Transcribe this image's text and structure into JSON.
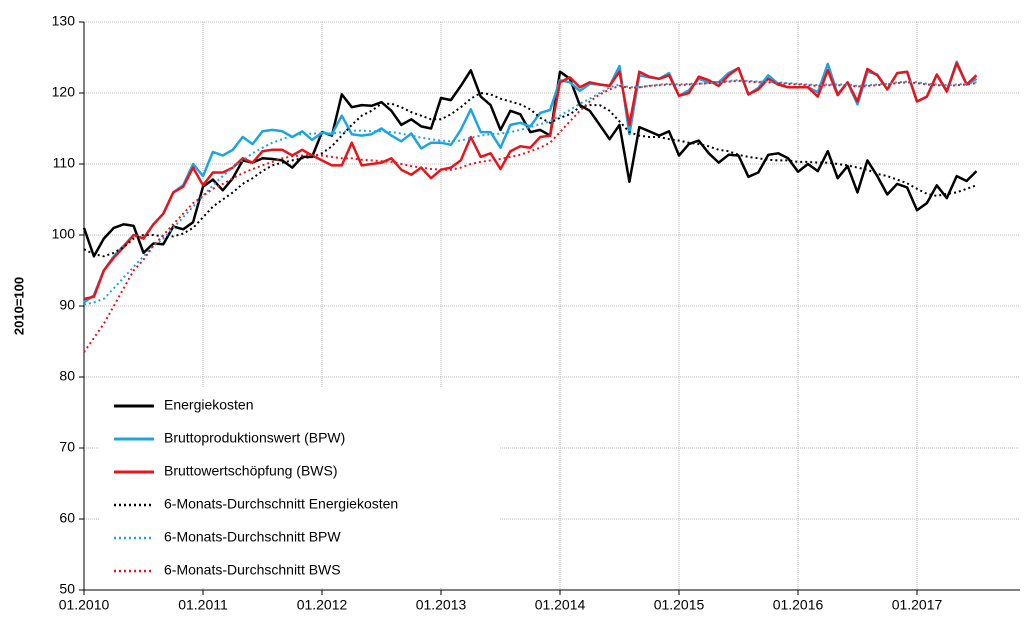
{
  "chart_data": {
    "type": "line",
    "y_label": "2010=100",
    "categories": [
      "01.2010",
      null,
      null,
      null,
      null,
      null,
      null,
      null,
      null,
      null,
      null,
      null,
      "01.2011",
      null,
      null,
      null,
      null,
      null,
      null,
      null,
      null,
      null,
      null,
      null,
      "01.2012",
      null,
      null,
      null,
      null,
      null,
      null,
      null,
      null,
      null,
      null,
      null,
      "01.2013",
      null,
      null,
      null,
      null,
      null,
      null,
      null,
      null,
      null,
      null,
      null,
      "01.2014",
      null,
      null,
      null,
      null,
      null,
      null,
      null,
      null,
      null,
      null,
      null,
      "01.2015",
      null,
      null,
      null,
      null,
      null,
      null,
      null,
      null,
      null,
      null,
      null,
      "01.2016",
      null,
      null,
      null,
      null,
      null,
      null,
      null,
      null,
      null,
      null,
      null,
      "01.2017",
      null,
      null,
      null,
      null,
      null,
      null
    ],
    "ylim": [
      50,
      130
    ],
    "yticks": [
      50,
      60,
      70,
      80,
      90,
      100,
      110,
      120,
      130
    ],
    "grid": true,
    "legend": "lower left",
    "series": [
      {
        "name": "Energiekosten",
        "color": "#000000",
        "line_style": "solid",
        "values": [
          101,
          97,
          99.5,
          101,
          101.5,
          101.3,
          97.5,
          98.8,
          98.7,
          101.2,
          100.8,
          101.8,
          106.8,
          107.8,
          106.3,
          108,
          110.5,
          110.2,
          110.8,
          110.7,
          110.5,
          109.5,
          111,
          111,
          114.5,
          114,
          119.8,
          118,
          118.3,
          118.2,
          118.7,
          117.5,
          115.5,
          116.3,
          115.3,
          115,
          119.3,
          119,
          121,
          123.2,
          119.5,
          118.3,
          114.8,
          117.5,
          117,
          114.5,
          114.8,
          114,
          123,
          122,
          118.3,
          117.5,
          115.5,
          113.5,
          115.5,
          107.5,
          115.2,
          114.6,
          114,
          114.6,
          111.2,
          112.8,
          113.3,
          111.5,
          110.2,
          111.3,
          111.2,
          108.2,
          108.8,
          111.3,
          111.5,
          110.8,
          108.9,
          110,
          109,
          111.8,
          108,
          109.7,
          106,
          110.5,
          108.3,
          105.7,
          107.2,
          106.7,
          103.5,
          104.5,
          107,
          105.2,
          108.3,
          107.6,
          109
        ]
      },
      {
        "name": "Bruttoproduktionswert (BPW)",
        "color": "#1ea5e0",
        "line_style": "solid",
        "values": [
          90.5,
          91.5,
          95,
          97,
          98.5,
          100,
          99.5,
          101.5,
          103,
          106,
          107,
          110,
          108.3,
          111.7,
          111.2,
          112,
          113.8,
          112.8,
          114.6,
          114.8,
          114.6,
          113.8,
          114.6,
          113.4,
          114.4,
          114.2,
          116.8,
          114.2,
          114,
          114.2,
          115,
          114,
          113.2,
          114.3,
          112.2,
          113,
          113,
          112.7,
          114.8,
          117.7,
          114.5,
          114.5,
          112.3,
          115.5,
          115.8,
          115.3,
          117.2,
          117.6,
          121.8,
          121.5,
          120.3,
          121.3,
          121.2,
          121,
          123.8,
          114.2,
          122.5,
          122.2,
          122,
          122.8,
          119.6,
          120.4,
          122,
          121.5,
          121.5,
          122.8,
          123.5,
          119.8,
          120.7,
          122.5,
          121.3,
          120.8,
          120.8,
          120.8,
          120.1,
          124.1,
          119.8,
          121.5,
          118.4,
          123,
          122.6,
          120.5,
          122.8,
          123,
          118.8,
          119.5,
          122.6,
          120.3,
          124.4,
          121.2,
          122
        ]
      },
      {
        "name": "Bruttowertschöpfung (BWS)",
        "color": "#e8141c",
        "line_style": "solid",
        "values": [
          91,
          91.3,
          95,
          96.8,
          98.3,
          100,
          99.5,
          101.5,
          103,
          106,
          106.8,
          109.5,
          107,
          108.8,
          108.8,
          109.5,
          110.8,
          110.2,
          111.8,
          112,
          112,
          111.2,
          112,
          111.2,
          110.5,
          109.8,
          109.8,
          113,
          109.8,
          110,
          110.2,
          110.8,
          109.2,
          108.5,
          109.5,
          108,
          109.2,
          109.5,
          110.5,
          113.8,
          111,
          111.5,
          109.3,
          111.8,
          112.5,
          112.3,
          113.8,
          114,
          121.5,
          122.2,
          120.8,
          121.5,
          121.2,
          121,
          123,
          115.5,
          123,
          122.3,
          122,
          122.5,
          119.6,
          120,
          122.3,
          121.8,
          121,
          122.5,
          123.5,
          119.8,
          120.5,
          122,
          121.2,
          120.8,
          120.8,
          120.8,
          119.5,
          123.2,
          119.7,
          121.5,
          118.8,
          123.4,
          122.5,
          120.5,
          122.8,
          123,
          118.8,
          119.5,
          122.6,
          120.2,
          124.2,
          121.2,
          122.5
        ]
      },
      {
        "name": "6-Monats-Durchschnitt Energiekosten",
        "color": "#000000",
        "line_style": "dotted",
        "values": [
          98,
          97.3,
          97,
          97.5,
          98.3,
          99.5,
          100,
          100,
          99.8,
          99.8,
          100.2,
          101,
          102.5,
          104,
          105,
          106,
          107.2,
          108,
          109,
          109.8,
          110.2,
          110.5,
          110.8,
          111,
          111.5,
          112.5,
          114,
          115.5,
          116.8,
          117.5,
          118.5,
          118.5,
          118,
          117.3,
          116.8,
          116.3,
          116.3,
          117,
          118,
          119.2,
          120,
          119.8,
          119.2,
          118.8,
          118.4,
          117.7,
          116.5,
          115.8,
          116.5,
          117,
          118,
          118.3,
          118.3,
          117.5,
          116,
          114.5,
          114,
          113.8,
          113.8,
          113.5,
          113.3,
          113,
          112.8,
          112.5,
          112,
          111.8,
          111.3,
          111,
          110.8,
          110.6,
          110.5,
          110.5,
          110.3,
          110.3,
          110.2,
          110.2,
          110,
          109.8,
          109.5,
          109.2,
          108.6,
          108.3,
          107.8,
          107.3,
          106.5,
          105.8,
          105.5,
          105.8,
          106,
          106.5,
          107
        ]
      },
      {
        "name": "6-Monats-Durchschnitt BPW",
        "color": "#1ea5e0",
        "line_style": "dotted",
        "values": [
          90.2,
          90.5,
          91,
          92.5,
          94,
          95.5,
          97,
          98.5,
          99.5,
          101,
          102.5,
          104,
          105.5,
          107,
          108.3,
          109.5,
          110.5,
          111.5,
          112.3,
          113,
          113.5,
          114,
          114.2,
          114.3,
          114.3,
          114.3,
          114.5,
          114.7,
          114.7,
          114.6,
          114.6,
          114.5,
          114.3,
          114,
          113.7,
          113.5,
          113.3,
          113.2,
          113.3,
          113.7,
          114,
          114.2,
          114.3,
          114.5,
          114.8,
          115.2,
          115.6,
          116,
          116.8,
          117.6,
          118.5,
          119.2,
          120,
          120.8,
          121.2,
          120.8,
          120.8,
          121,
          121.2,
          121.3,
          121.2,
          121.3,
          121.3,
          121.4,
          121.5,
          121.7,
          121.8,
          121.7,
          121.6,
          121.6,
          121.5,
          121.4,
          121.3,
          121.2,
          121.1,
          121.2,
          121.2,
          121.2,
          121,
          121.1,
          121.2,
          121.3,
          121.5,
          121.6,
          121.5,
          121.3,
          121.2,
          121.1,
          121.2,
          121.3,
          121.5
        ]
      },
      {
        "name": "6-Monats-Durchschnitt BWS",
        "color": "#e8141c",
        "line_style": "dotted",
        "values": [
          83.5,
          85.5,
          87.5,
          90,
          92.5,
          95,
          96.5,
          98.5,
          100,
          101.5,
          103,
          104.5,
          105.5,
          106.5,
          107.2,
          108,
          108.7,
          109.3,
          109.8,
          110.3,
          110.8,
          111.1,
          111.2,
          111.3,
          111.2,
          111,
          110.8,
          110.8,
          110.6,
          110.5,
          110.4,
          110.3,
          110,
          109.7,
          109.5,
          109.3,
          109.2,
          109.2,
          109.5,
          110,
          110.3,
          110.5,
          110.7,
          111,
          111.3,
          111.8,
          112.3,
          113,
          114.5,
          116,
          117.5,
          118.8,
          119.8,
          120.5,
          121,
          120.7,
          120.8,
          121,
          121.1,
          121.2,
          121.1,
          121.2,
          121.3,
          121.4,
          121.5,
          121.6,
          121.7,
          121.6,
          121.5,
          121.5,
          121.4,
          121.3,
          121.2,
          121.1,
          121,
          121.1,
          121.1,
          121.1,
          120.9,
          121,
          121.1,
          121.2,
          121.4,
          121.5,
          121.4,
          121.2,
          121.1,
          121,
          121.1,
          121.2,
          121.4
        ]
      }
    ]
  }
}
